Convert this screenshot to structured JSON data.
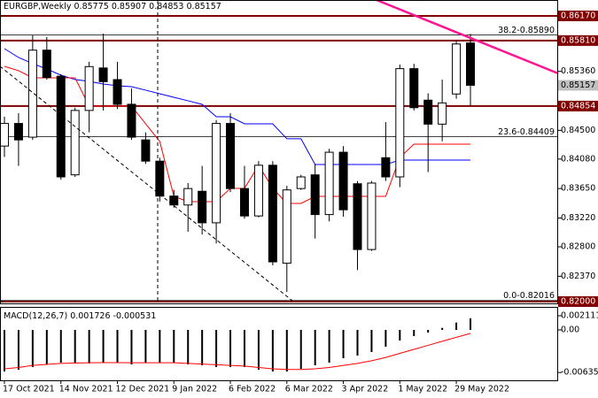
{
  "chart_data": {
    "type": "candlestick",
    "title": "EURGBP,Weekly",
    "categories": [
      "17 Oct 2021",
      null,
      null,
      null,
      "14 Nov 2021",
      null,
      null,
      null,
      "12 Dec 2021",
      null,
      null,
      null,
      "9 Jan 2022",
      null,
      null,
      null,
      "6 Feb 2022",
      null,
      null,
      null,
      "6 Mar 2022",
      null,
      null,
      null,
      "3 Apr 2022",
      null,
      null,
      null,
      "1 May 2022",
      null,
      null,
      null,
      "29 May 2022",
      null
    ],
    "open": [
      0.8427,
      0.846,
      0.844,
      0.8567,
      0.8529,
      0.8385,
      0.8479,
      0.8541,
      0.8524,
      0.8488,
      0.8436,
      0.8405,
      0.8354,
      0.8341,
      0.8361,
      0.8315,
      0.846,
      0.8365,
      0.8325,
      0.8399,
      0.8256,
      0.8365,
      0.8385,
      0.8327,
      0.8418,
      0.8372,
      0.8276,
      0.841,
      0.8382,
      0.854,
      0.8494,
      0.8459,
      0.8503,
      0.85775
    ],
    "high": [
      0.847,
      0.8475,
      0.8589,
      0.8586,
      0.8532,
      0.8483,
      0.855,
      0.8591,
      0.855,
      0.8511,
      0.8447,
      0.841,
      0.8363,
      0.8373,
      0.8398,
      0.8465,
      0.8475,
      0.8398,
      0.8405,
      0.8405,
      0.8369,
      0.8385,
      0.8401,
      0.8423,
      0.8427,
      0.8376,
      0.8376,
      0.8462,
      0.8546,
      0.8547,
      0.8504,
      0.8524,
      0.8581,
      0.85907
    ],
    "low": [
      0.8411,
      0.8398,
      0.8436,
      0.8524,
      0.8378,
      0.8382,
      0.8447,
      0.8479,
      0.8481,
      0.8436,
      0.8401,
      0.8346,
      0.8337,
      0.8302,
      0.8298,
      0.8285,
      0.836,
      0.8321,
      0.8323,
      0.8253,
      0.8214,
      0.8363,
      0.8292,
      0.8317,
      0.8324,
      0.8246,
      0.8274,
      0.8376,
      0.8367,
      0.8479,
      0.8389,
      0.8434,
      0.8496,
      0.84853
    ],
    "close": [
      0.846,
      0.8436,
      0.8567,
      0.8527,
      0.8382,
      0.8479,
      0.8543,
      0.8521,
      0.8488,
      0.844,
      0.8405,
      0.8354,
      0.8341,
      0.8365,
      0.8315,
      0.846,
      0.8365,
      0.8325,
      0.8399,
      0.8258,
      0.8363,
      0.8382,
      0.8327,
      0.8418,
      0.8334,
      0.8276,
      0.8373,
      0.8382,
      0.854,
      0.8483,
      0.8459,
      0.849,
      0.8576,
      0.85157
    ],
    "series": [
      {
        "color": "#0000ff",
        "values": [
          0.85692,
          0.85563,
          0.85473,
          0.85395,
          0.85305,
          0.85241,
          0.85215,
          0.85176,
          0.8515,
          0.85137,
          0.85086,
          0.85034,
          0.84982,
          0.84931,
          0.84879,
          0.84698,
          0.84698,
          0.84595,
          0.84595,
          0.84595,
          0.84376,
          0.84376,
          0.84001,
          0.84001,
          0.84001,
          0.84001,
          0.84001,
          0.84001,
          0.84066,
          0.84066,
          0.84066,
          0.84066,
          0.84066,
          0.84066
        ]
      },
      {
        "color": "#ff0000",
        "values": [
          0.85434,
          0.8537,
          0.85266,
          0.85266,
          0.85266,
          0.85266,
          0.84853,
          0.84853,
          0.84853,
          0.84853,
          0.84595,
          0.84337,
          0.83536,
          0.83459,
          0.83459,
          0.83459,
          0.83653,
          0.83653,
          0.83988,
          0.83653,
          0.83433,
          0.83433,
          0.83536,
          0.83536,
          0.83536,
          0.83536,
          0.83536,
          0.83536,
          0.84104,
          0.84298,
          0.84298,
          0.84298,
          0.84298,
          0.84298
        ]
      }
    ],
    "ylim": [
      0.81974,
      0.86402
    ],
    "yticks": [
      {
        "value": 0.8536,
        "label": "0.85360"
      },
      {
        "value": 0.845,
        "label": "0.84500"
      },
      {
        "value": 0.8408,
        "label": "0.84080"
      },
      {
        "value": 0.8365,
        "label": "0.83650"
      },
      {
        "value": 0.8322,
        "label": "0.83220"
      },
      {
        "value": 0.828,
        "label": "0.82800"
      },
      {
        "value": 0.8237,
        "label": "0.82370"
      }
    ],
    "levels": [
      {
        "value": 0.8617,
        "label": "0.86170"
      },
      {
        "value": 0.8581,
        "label": "0.85810"
      },
      {
        "value": 0.84854,
        "label": "0.84854"
      },
      {
        "value": 0.82,
        "label": "0.82000"
      }
    ],
    "level_color": "#800000",
    "fib_levels": [
      {
        "value": 0.8589,
        "label": "38.2-0.85890"
      },
      {
        "value": 0.84409,
        "label": "23.6-0.84409"
      },
      {
        "value": 0.82016,
        "label": "0.0-0.82016"
      }
    ],
    "macd": {
      "name": "MACD(12,26,7)",
      "values": [
        -0.0062,
        -0.00594,
        -0.00554,
        -0.00515,
        -0.00488,
        -0.00501,
        -0.00501,
        -0.00488,
        -0.00488,
        -0.00515,
        -0.00488,
        -0.00488,
        -0.00488,
        -0.00515,
        -0.00528,
        -0.00554,
        -0.00554,
        -0.00554,
        -0.00594,
        -0.0062,
        -0.0062,
        -0.0058,
        -0.00528,
        -0.00488,
        -0.00422,
        -0.00383,
        -0.0033,
        -0.00251,
        -0.00158,
        -0.00092,
        -0.0004,
        0.0003,
        0.0011,
        0.001726
      ],
      "signal": [
        -0.0058,
        -0.0056,
        -0.0053,
        -0.00515,
        -0.005,
        -0.00495,
        -0.0049,
        -0.00488,
        -0.00488,
        -0.0049,
        -0.0049,
        -0.0049,
        -0.0049,
        -0.005,
        -0.0051,
        -0.0052,
        -0.0053,
        -0.0054,
        -0.0056,
        -0.0058,
        -0.0059,
        -0.0059,
        -0.0058,
        -0.0056,
        -0.0053,
        -0.005,
        -0.0046,
        -0.0041,
        -0.0035,
        -0.0029,
        -0.0023,
        -0.0017,
        -0.0011,
        -0.000531
      ],
      "signal_color": "#ff0000",
      "ylim": [
        -0.00752,
        0.0033
      ],
      "yticks": [
        0.002111,
        {
          "value": 0,
          "label": "0.00"
        },
        -0.006353
      ]
    }
  }
}
